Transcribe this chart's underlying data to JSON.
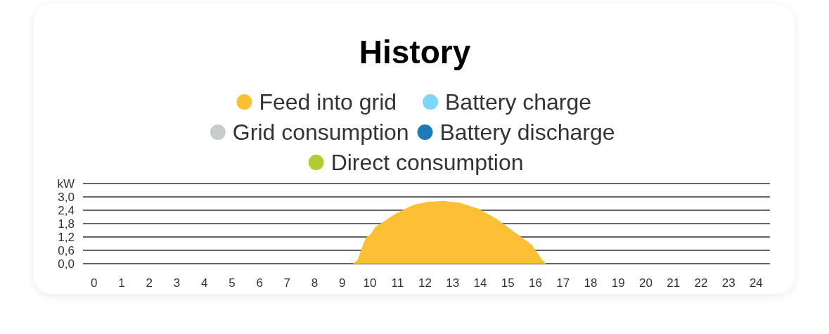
{
  "chart_data": {
    "type": "area",
    "title": "History",
    "legend": "top",
    "grid": "y",
    "xlim": [
      -0.4,
      24.5
    ],
    "xticks": [
      0,
      1,
      2,
      3,
      4,
      5,
      6,
      7,
      8,
      9,
      10,
      11,
      12,
      13,
      14,
      15,
      16,
      17,
      18,
      19,
      20,
      21,
      22,
      23,
      24
    ],
    "ylim": [
      0,
      3.6
    ],
    "yticks": [
      {
        "value": 0,
        "label": "0,0"
      },
      {
        "value": 0.6,
        "label": "0,6"
      },
      {
        "value": 1.2,
        "label": "1,2"
      },
      {
        "value": 1.8,
        "label": "1,8"
      },
      {
        "value": 2.4,
        "label": "2,4"
      },
      {
        "value": 3.0,
        "label": "3,0"
      },
      {
        "value": 3.6,
        "label": "kW"
      }
    ],
    "series": [
      {
        "name": "Feed into grid",
        "color": "#fdbf33",
        "x": [
          9.38,
          9.55,
          9.85,
          10.02,
          10.2,
          10.95,
          11.55,
          12.06,
          12.65,
          13.25,
          13.93,
          14.61,
          15.29,
          15.88,
          16.22,
          16.38
        ],
        "values": [
          0,
          0.16,
          1.17,
          1.31,
          1.65,
          2.26,
          2.63,
          2.77,
          2.82,
          2.74,
          2.47,
          2.0,
          1.37,
          0.84,
          0.21,
          0
        ]
      },
      {
        "name": "Battery charge",
        "color": "#7dd6fb"
      },
      {
        "name": "Grid consumption",
        "color": "#c9cccc"
      },
      {
        "name": "Battery discharge",
        "color": "#1f7bb6"
      },
      {
        "name": "Direct consumption",
        "color": "#b4cb32"
      }
    ]
  }
}
